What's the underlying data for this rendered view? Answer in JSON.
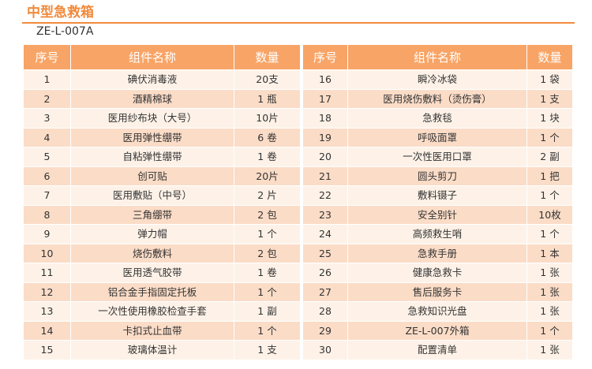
{
  "title": "中型急救箱",
  "model": "ZE-L-007A",
  "headers": {
    "index": "序号",
    "name": "组件名称",
    "qty": "数量"
  },
  "colors": {
    "accent": "#f08a3c",
    "header_bg": "#f8a466",
    "row_light": "#fef2e8",
    "row_dark": "#fbdcc7"
  },
  "left_rows": [
    {
      "index": "1",
      "name": "碘伏消毒液",
      "qty": "20支"
    },
    {
      "index": "2",
      "name": "酒精棉球",
      "qty": "1 瓶"
    },
    {
      "index": "3",
      "name": "医用纱布块（大号）",
      "qty": "10片"
    },
    {
      "index": "4",
      "name": "医用弹性绷带",
      "qty": "6 卷"
    },
    {
      "index": "5",
      "name": "自粘弹性绷带",
      "qty": "1 卷"
    },
    {
      "index": "6",
      "name": "创可贴",
      "qty": "20片"
    },
    {
      "index": "7",
      "name": "医用敷贴（中号）",
      "qty": "2 片"
    },
    {
      "index": "8",
      "name": "三角绷带",
      "qty": "2 包"
    },
    {
      "index": "9",
      "name": "弹力帽",
      "qty": "1 个"
    },
    {
      "index": "10",
      "name": "烧伤敷料",
      "qty": "2 包"
    },
    {
      "index": "11",
      "name": "医用透气胶带",
      "qty": "1 卷"
    },
    {
      "index": "12",
      "name": "铝合金手指固定托板",
      "qty": "1 个"
    },
    {
      "index": "13",
      "name": "一次性使用橡胶检查手套",
      "qty": "1 副"
    },
    {
      "index": "14",
      "name": "卡扣式止血带",
      "qty": "1 个"
    },
    {
      "index": "15",
      "name": "玻璃体温计",
      "qty": "1 支"
    }
  ],
  "right_rows": [
    {
      "index": "16",
      "name": "瞬冷冰袋",
      "qty": "1 袋"
    },
    {
      "index": "17",
      "name": "医用烧伤敷料（烫伤膏）",
      "qty": "1 支"
    },
    {
      "index": "18",
      "name": "急救毯",
      "qty": "1 块"
    },
    {
      "index": "19",
      "name": "呼吸面罩",
      "qty": "1 个"
    },
    {
      "index": "20",
      "name": "一次性医用口罩",
      "qty": "2 副"
    },
    {
      "index": "21",
      "name": "圆头剪刀",
      "qty": "1 把"
    },
    {
      "index": "22",
      "name": "敷料镊子",
      "qty": "1 个"
    },
    {
      "index": "23",
      "name": "安全别针",
      "qty": "10枚"
    },
    {
      "index": "24",
      "name": "高频救生哨",
      "qty": "1 个"
    },
    {
      "index": "25",
      "name": "急救手册",
      "qty": "1 本"
    },
    {
      "index": "26",
      "name": "健康急救卡",
      "qty": "1 张"
    },
    {
      "index": "27",
      "name": "售后服务卡",
      "qty": "1 张"
    },
    {
      "index": "28",
      "name": "急救知识光盘",
      "qty": "1 张"
    },
    {
      "index": "29",
      "name": "ZE-L-007外箱",
      "qty": "1 个"
    },
    {
      "index": "30",
      "name": "配置清单",
      "qty": "1 张"
    }
  ]
}
